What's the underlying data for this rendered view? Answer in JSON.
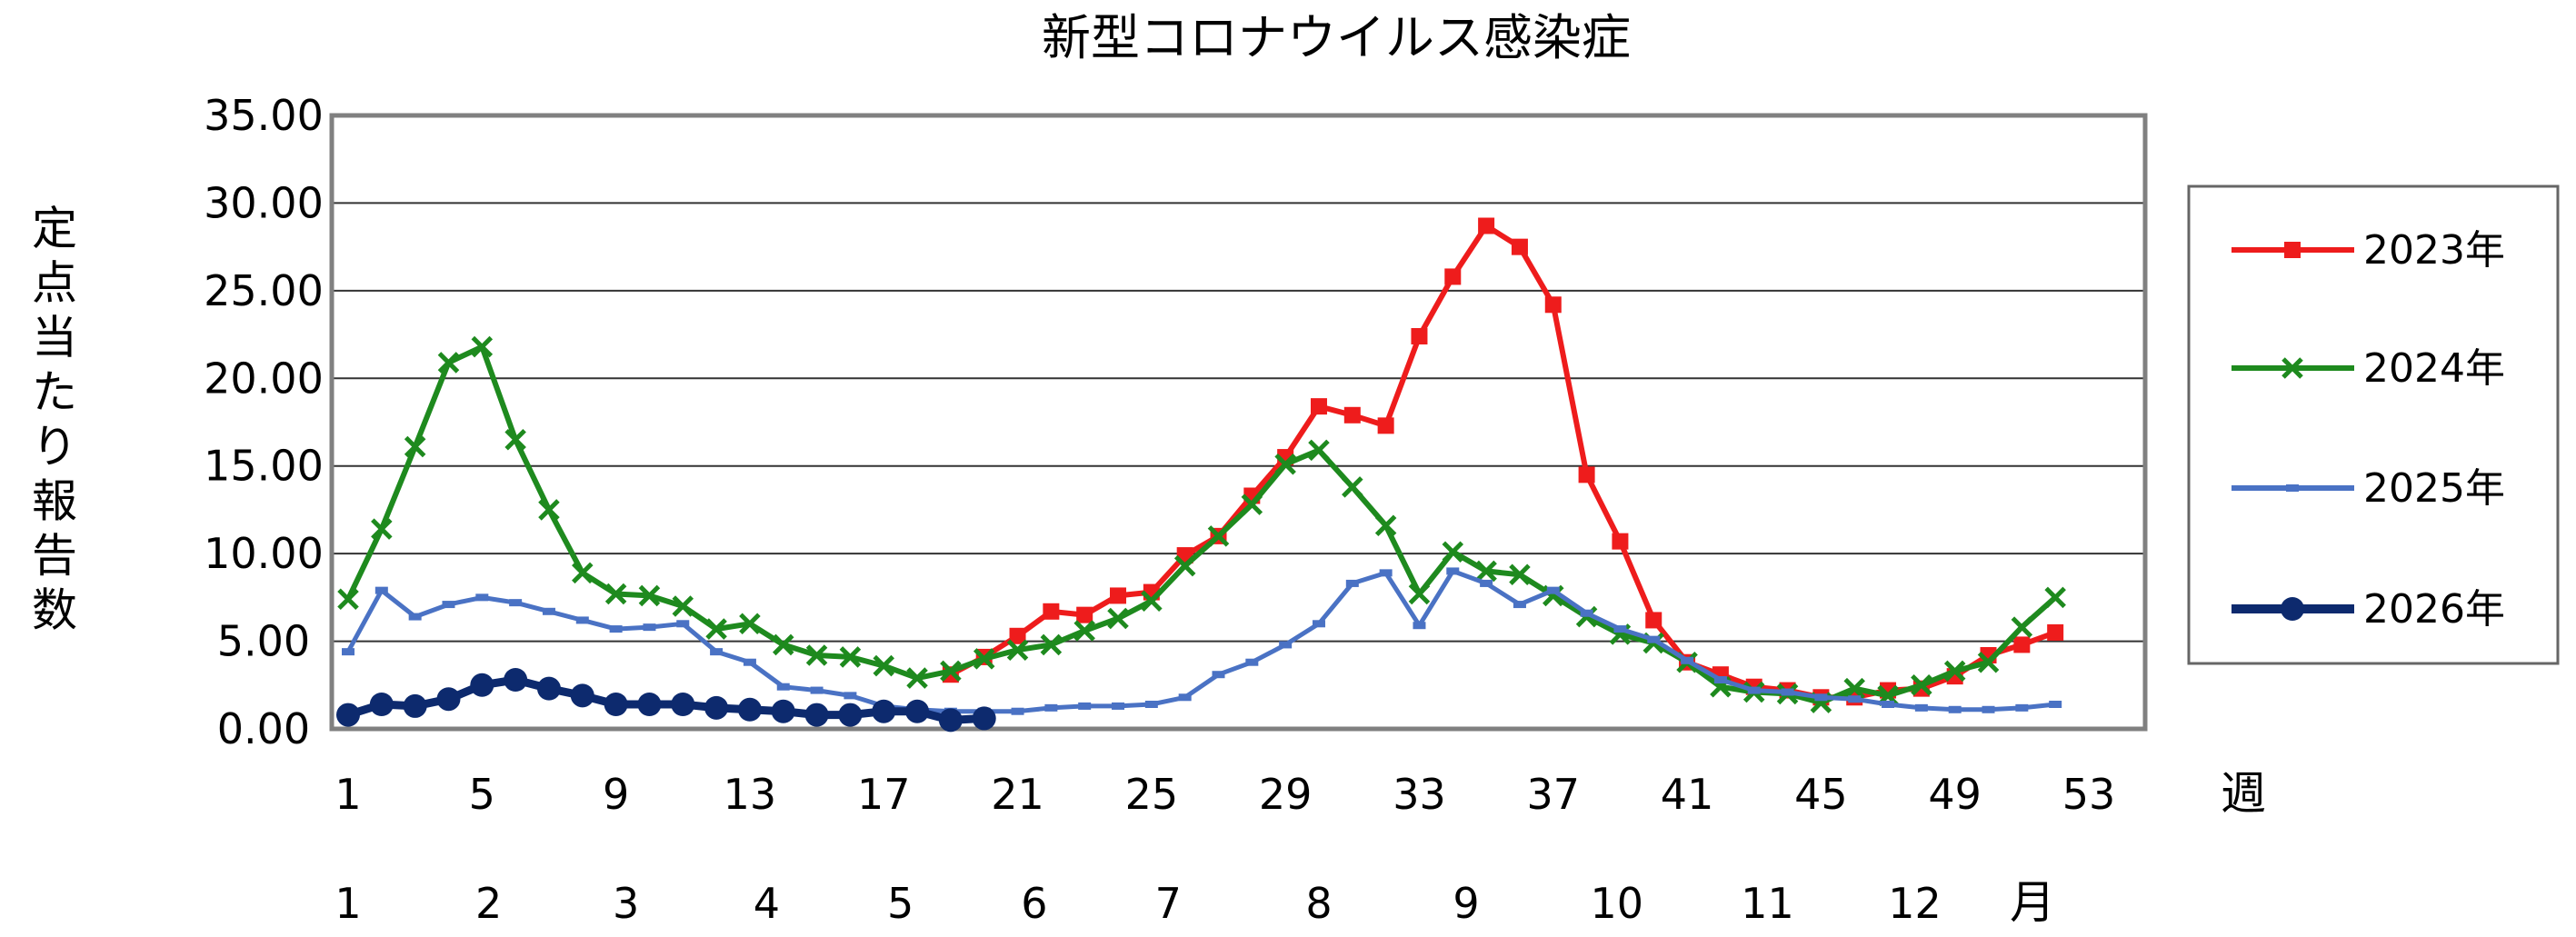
{
  "chart_data": {
    "type": "line",
    "title": "新型コロナウイルス感染症",
    "ylabel": "定点当たり報告数",
    "xlabel": "週",
    "month_label": "月",
    "ylim": [
      0,
      35
    ],
    "yticks": [
      "0.00",
      "5.00",
      "10.00",
      "15.00",
      "20.00",
      "25.00",
      "30.00",
      "35.00"
    ],
    "xlim": [
      1,
      53
    ],
    "week_ticks": [
      1,
      5,
      9,
      13,
      17,
      21,
      25,
      29,
      33,
      37,
      41,
      45,
      49,
      53
    ],
    "month_ticks": [
      {
        "label": "1",
        "week": 1
      },
      {
        "label": "2",
        "week": 5.2
      },
      {
        "label": "3",
        "week": 9.3
      },
      {
        "label": "4",
        "week": 13.5
      },
      {
        "label": "5",
        "week": 17.5
      },
      {
        "label": "6",
        "week": 21.5
      },
      {
        "label": "7",
        "week": 25.5
      },
      {
        "label": "8",
        "week": 30
      },
      {
        "label": "9",
        "week": 34.4
      },
      {
        "label": "10",
        "week": 38.9
      },
      {
        "label": "11",
        "week": 43.4
      },
      {
        "label": "12",
        "week": 47.8
      }
    ],
    "grid": true,
    "legend_position": "right",
    "series": [
      {
        "name": "2023年",
        "color": "#ee1c1c",
        "marker": "square",
        "start_week": 19,
        "values": [
          3.1,
          4.1,
          5.3,
          6.7,
          6.5,
          7.6,
          7.8,
          9.9,
          11.0,
          13.3,
          15.5,
          18.4,
          17.9,
          17.3,
          22.4,
          25.8,
          28.7,
          27.5,
          24.2,
          14.5,
          10.7,
          6.2,
          3.8,
          3.1,
          2.4,
          2.2,
          1.8,
          1.8,
          2.2,
          2.3,
          3.0,
          4.2,
          4.8,
          5.5
        ]
      },
      {
        "name": "2024年",
        "color": "#1e8a1e",
        "marker": "x",
        "start_week": 1,
        "values": [
          7.4,
          11.4,
          16.1,
          20.9,
          21.8,
          16.5,
          12.5,
          8.9,
          7.7,
          7.6,
          7.0,
          5.7,
          6.0,
          4.8,
          4.2,
          4.1,
          3.6,
          2.9,
          3.3,
          4.0,
          4.5,
          4.8,
          5.6,
          6.3,
          7.3,
          9.3,
          11.0,
          12.8,
          15.1,
          15.9,
          13.8,
          11.6,
          7.7,
          10.1,
          9.0,
          8.8,
          7.6,
          6.4,
          5.4,
          4.9,
          3.8,
          2.4,
          2.1,
          2.0,
          1.5,
          2.3,
          1.9,
          2.5,
          3.3,
          3.8,
          5.8,
          7.5
        ]
      },
      {
        "name": "2025年",
        "color": "#4a72c4",
        "marker": "dash",
        "start_week": 1,
        "values": [
          4.4,
          7.9,
          6.4,
          7.1,
          7.5,
          7.2,
          6.7,
          6.2,
          5.7,
          5.8,
          6.0,
          4.4,
          3.8,
          2.4,
          2.2,
          1.9,
          1.3,
          1.1,
          1.0,
          1.0,
          1.0,
          1.2,
          1.3,
          1.3,
          1.4,
          1.8,
          3.1,
          3.8,
          4.8,
          6.0,
          8.3,
          8.9,
          5.9,
          9.0,
          8.3,
          7.1,
          7.9,
          6.6,
          5.7,
          5.1,
          3.9,
          2.8,
          2.2,
          2.1,
          1.8,
          1.7,
          1.4,
          1.2,
          1.1,
          1.1,
          1.2,
          1.4
        ]
      },
      {
        "name": "2026年",
        "color": "#0d2a6e",
        "marker": "circle",
        "start_week": 1,
        "values": [
          0.8,
          1.4,
          1.3,
          1.7,
          2.5,
          2.8,
          2.3,
          1.9,
          1.4,
          1.4,
          1.4,
          1.2,
          1.1,
          1.0,
          0.8,
          0.8,
          1.0,
          1.0,
          0.5,
          0.6
        ]
      }
    ]
  }
}
